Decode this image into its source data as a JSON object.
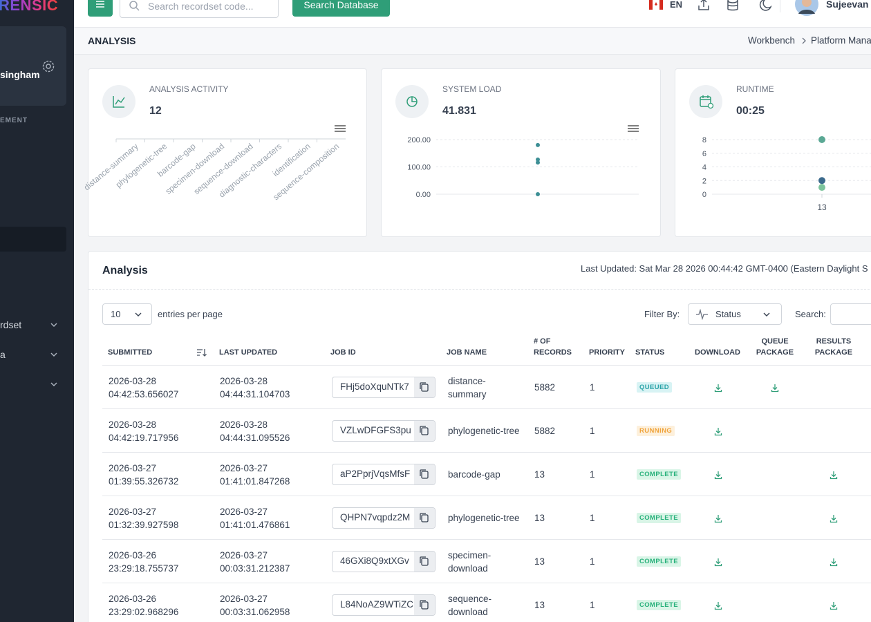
{
  "sidebar": {
    "logo": "RENSIC",
    "user": "singham",
    "section": "EMENT",
    "menu": [
      "rdset",
      "a"
    ]
  },
  "topbar": {
    "search_placeholder": "Search recordset code...",
    "search_button": "Search Database",
    "language": "EN",
    "user": "Sujeevan I"
  },
  "header": {
    "title": "ANALYSIS",
    "breadcrumb": [
      "Workbench",
      "Platform Mana"
    ]
  },
  "cards": [
    {
      "title": "ANALYSIS ACTIVITY",
      "value": "12",
      "chart": {
        "type": "bar",
        "categories": [
          "distance-summary",
          "phylogenetic-tree",
          "barcode-gap",
          "specimen-download",
          "sequence-download",
          "diagnostic-characters",
          "identification",
          "sequence-composition"
        ]
      }
    },
    {
      "title": "SYSTEM LOAD",
      "value": "41.831",
      "chart": {
        "type": "scatter",
        "values": [
          180,
          127,
          116,
          0
        ],
        "color": "#3d8f95",
        "ylim": [
          0,
          200
        ],
        "yticks": [
          {
            "value": 0,
            "label": "0.00"
          },
          {
            "value": 100,
            "label": "100.00"
          },
          {
            "value": 200,
            "label": "200.00"
          }
        ],
        "grid": true
      }
    },
    {
      "title": "RUNTIME",
      "value": "00:25",
      "chart": {
        "type": "scatter",
        "categories": [
          "13"
        ],
        "ylim": [
          0,
          8
        ],
        "yticks": [
          0,
          2,
          4,
          6,
          8
        ],
        "grid": true,
        "series": [
          {
            "color": "#5aa894",
            "values": [
              8
            ]
          },
          {
            "color": "#3b6a8c",
            "values": [
              2
            ]
          },
          {
            "color": "#7cc49c",
            "values": [
              1
            ]
          }
        ]
      }
    }
  ],
  "table": {
    "title": "Analysis",
    "last_updated": "Last Updated: Sat Mar 28 2026 00:44:42 GMT-0400 (Eastern Daylight S",
    "entries": "10",
    "entries_label": "entries per page",
    "filter_label": "Filter By:",
    "filter_value": "Status",
    "search_label": "Search:",
    "columns": [
      "SUBMITTED",
      "LAST UPDATED",
      "JOB ID",
      "JOB NAME",
      "# OF RECORDS",
      "PRIORITY",
      "STATUS",
      "DOWNLOAD",
      "QUEUE PACKAGE",
      "RESULTS PACKAGE"
    ],
    "status_styles": {
      "QUEUED": {
        "color": "#2aa3a8",
        "background": "#d8f3f4"
      },
      "RUNNING": {
        "color": "#f0a33a",
        "background": "#fdf0dc"
      },
      "COMPLETE": {
        "color": "#25b079",
        "background": "#d9f5e7"
      }
    },
    "rows": [
      {
        "submitted": "2026-03-28 04:42:53.656027",
        "updated": "2026-03-28 04:44:31.104703",
        "job_id": "FHj5doXquNTk7",
        "job_name": "distance-summary",
        "records": "5882",
        "priority": "1",
        "status": "QUEUED",
        "download": true,
        "queue_package": true,
        "results_package": false
      },
      {
        "submitted": "2026-03-28 04:42:19.717956",
        "updated": "2026-03-28 04:44:31.095526",
        "job_id": "VZLwDFGFS3pu",
        "job_name": "phylogenetic-tree",
        "records": "5882",
        "priority": "1",
        "status": "RUNNING",
        "download": true,
        "queue_package": false,
        "results_package": false
      },
      {
        "submitted": "2026-03-27 01:39:55.326732",
        "updated": "2026-03-27 01:41:01.847268",
        "job_id": "aP2PprjVqsMfsF",
        "job_name": "barcode-gap",
        "records": "13",
        "priority": "1",
        "status": "COMPLETE",
        "download": true,
        "queue_package": false,
        "results_package": true
      },
      {
        "submitted": "2026-03-27 01:32:39.927598",
        "updated": "2026-03-27 01:41:01.476861",
        "job_id": "QHPN7vqpdz2M",
        "job_name": "phylogenetic-tree",
        "records": "13",
        "priority": "1",
        "status": "COMPLETE",
        "download": true,
        "queue_package": false,
        "results_package": true
      },
      {
        "submitted": "2026-03-26 23:29:18.755737",
        "updated": "2026-03-27 00:03:31.212387",
        "job_id": "46GXi8Q9xtXGv",
        "job_name": "specimen-download",
        "records": "13",
        "priority": "1",
        "status": "COMPLETE",
        "download": true,
        "queue_package": false,
        "results_package": true
      },
      {
        "submitted": "2026-03-26 23:29:02.968296",
        "updated": "2026-03-27 00:03:31.062958",
        "job_id": "L84NoAZ9WTiZC",
        "job_name": "sequence-download",
        "records": "13",
        "priority": "1",
        "status": "COMPLETE",
        "download": true,
        "queue_package": false,
        "results_package": true
      }
    ]
  }
}
